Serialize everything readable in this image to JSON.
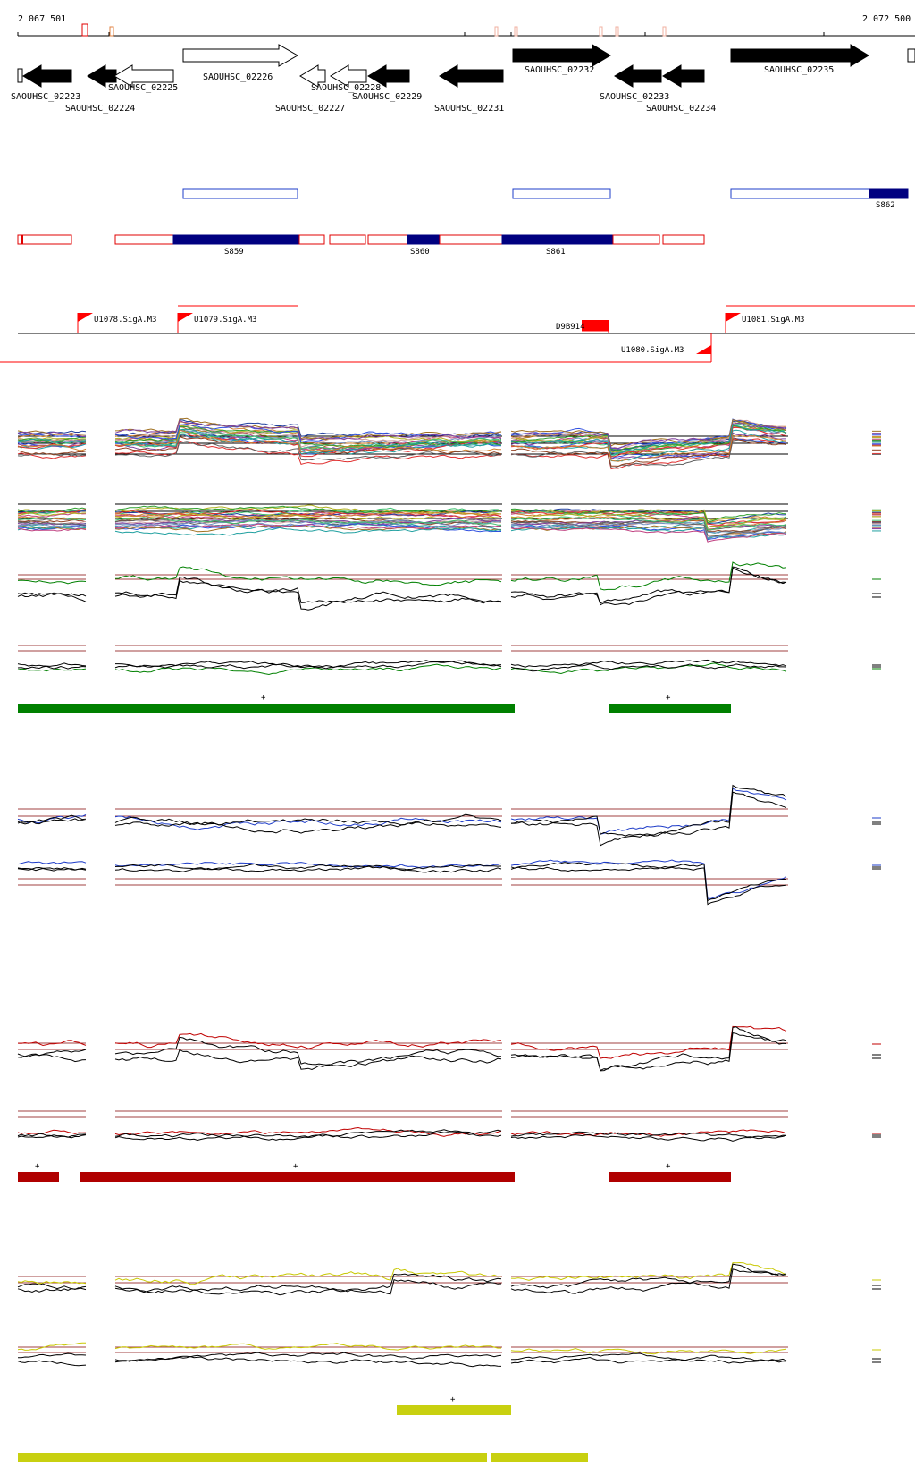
{
  "coordinates": {
    "start": "2 067 501",
    "end": "2 072 500"
  },
  "genes": [
    {
      "name": "SAOUHSC_02223",
      "strand": "-",
      "fill": "black"
    },
    {
      "name": "SAOUHSC_02224",
      "strand": "-",
      "fill": "black"
    },
    {
      "name": "SAOUHSC_02225",
      "strand": "-",
      "fill": "white"
    },
    {
      "name": "SAOUHSC_02226",
      "strand": "+",
      "fill": "white"
    },
    {
      "name": "SAOUHSC_02227",
      "strand": "-",
      "fill": "white"
    },
    {
      "name": "SAOUHSC_02228",
      "strand": "-",
      "fill": "white"
    },
    {
      "name": "SAOUHSC_02229",
      "strand": "-",
      "fill": "black"
    },
    {
      "name": "SAOUHSC_02231",
      "strand": "-",
      "fill": "black"
    },
    {
      "name": "SAOUHSC_02232",
      "strand": "+",
      "fill": "black"
    },
    {
      "name": "SAOUHSC_02233",
      "strand": "-",
      "fill": "black"
    },
    {
      "name": "SAOUHSC_02234",
      "strand": "-",
      "fill": "black"
    },
    {
      "name": "SAOUHSC_02235",
      "strand": "+",
      "fill": "black"
    }
  ],
  "segments": {
    "s859": "S859",
    "s860": "S860",
    "s861": "S861",
    "s862": "S862"
  },
  "promoters": {
    "u1078": "U1078.SigA.M3",
    "u1079": "U1079.SigA.M3",
    "u1080": "U1080.SigA.M3",
    "u1081": "U1081.SigA.M3",
    "d": "D9B914"
  },
  "strand_marks": {
    "plus": "+",
    "minus": "-"
  },
  "colors": {
    "green": "#008000",
    "dark_red": "#b00000",
    "yellow": "#c8d010",
    "blue": "#1e3cc8",
    "navy": "#000080",
    "red": "#ff0000",
    "threshold": "#a04040"
  }
}
